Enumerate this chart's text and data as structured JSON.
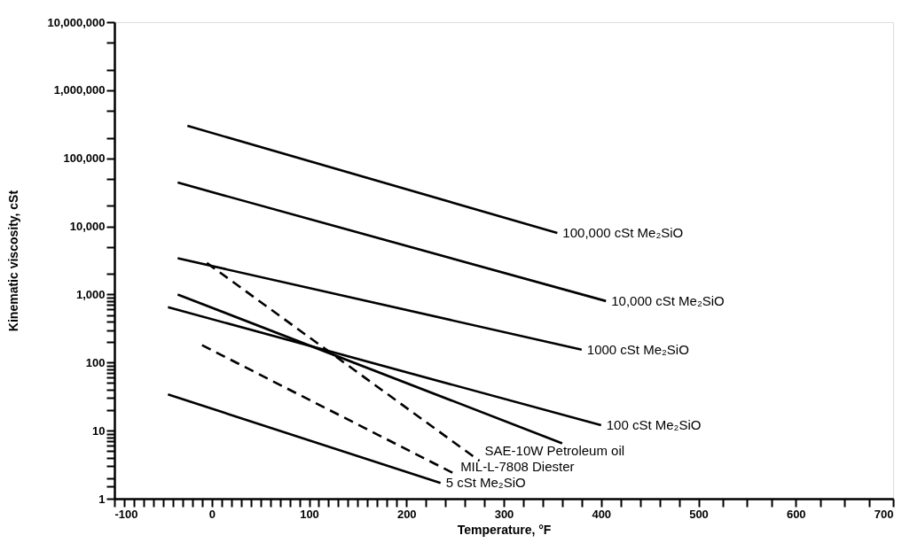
{
  "chart_data": {
    "type": "line",
    "log": "y",
    "xlabel": "Temperature, °F",
    "ylabel": "Kinematic viscosity, cSt",
    "xlim": [
      -100,
      700
    ],
    "ylim": [
      1,
      10000000
    ],
    "xticks": [
      -100,
      {
        "value": -90,
        "label": null
      },
      {
        "value": -80,
        "label": null
      },
      {
        "value": -70,
        "label": null
      },
      {
        "value": -60,
        "label": null
      },
      {
        "value": -50,
        "label": null
      },
      {
        "value": -40,
        "label": null
      },
      {
        "value": -30,
        "label": null
      },
      {
        "value": -20,
        "label": null
      },
      {
        "value": -10,
        "label": null
      },
      0,
      {
        "value": 10,
        "label": null
      },
      {
        "value": 20,
        "label": null
      },
      {
        "value": 30,
        "label": null
      },
      {
        "value": 40,
        "label": null
      },
      {
        "value": 50,
        "label": null
      },
      {
        "value": 60,
        "label": null
      },
      {
        "value": 70,
        "label": null
      },
      {
        "value": 80,
        "label": null
      },
      {
        "value": 90,
        "label": null
      },
      100,
      {
        "value": 110,
        "label": null
      },
      {
        "value": 120,
        "label": null
      },
      {
        "value": 130,
        "label": null
      },
      {
        "value": 140,
        "label": null
      },
      {
        "value": 150,
        "label": null
      },
      {
        "value": 160,
        "label": null
      },
      {
        "value": 170,
        "label": null
      },
      {
        "value": 180,
        "label": null
      },
      {
        "value": 190,
        "label": null
      },
      200,
      {
        "value": 220,
        "label": null
      },
      {
        "value": 240,
        "label": null
      },
      {
        "value": 260,
        "label": null
      },
      {
        "value": 280,
        "label": null
      },
      300,
      {
        "value": 320,
        "label": null
      },
      {
        "value": 340,
        "label": null
      },
      {
        "value": 360,
        "label": null
      },
      {
        "value": 380,
        "label": null
      },
      400,
      {
        "value": 420,
        "label": null
      },
      {
        "value": 440,
        "label": null
      },
      {
        "value": 460,
        "label": null
      },
      {
        "value": 480,
        "label": null
      },
      500,
      {
        "value": 525,
        "label": null
      },
      {
        "value": 550,
        "label": null
      },
      {
        "value": 575,
        "label": null
      },
      600,
      {
        "value": 625,
        "label": null
      },
      {
        "value": 650,
        "label": null
      },
      {
        "value": 675,
        "label": null
      },
      700
    ],
    "yticks": [
      1,
      {
        "value": 1.5,
        "label": null
      },
      {
        "value": 2,
        "label": null
      },
      {
        "value": 3,
        "label": null
      },
      {
        "value": 4,
        "label": null
      },
      {
        "value": 5,
        "label": null
      },
      {
        "value": 6,
        "label": null
      },
      {
        "value": 7,
        "label": null
      },
      {
        "value": 8,
        "label": null
      },
      {
        "value": 9,
        "label": null
      },
      10,
      {
        "value": 20,
        "label": null
      },
      {
        "value": 30,
        "label": null
      },
      {
        "value": 40,
        "label": null
      },
      {
        "value": 50,
        "label": null
      },
      {
        "value": 60,
        "label": null
      },
      {
        "value": 70,
        "label": null
      },
      {
        "value": 80,
        "label": null
      },
      {
        "value": 90,
        "label": null
      },
      100,
      {
        "value": 200,
        "label": null
      },
      {
        "value": 300,
        "label": null
      },
      {
        "value": 400,
        "label": null
      },
      {
        "value": 500,
        "label": null
      },
      {
        "value": 600,
        "label": null
      },
      {
        "value": 700,
        "label": null
      },
      {
        "value": 800,
        "label": null
      },
      {
        "value": 900,
        "label": null
      },
      {
        "value": 1000,
        "label": "1,000"
      },
      {
        "value": 2000,
        "label": null
      },
      {
        "value": 5000,
        "label": null
      },
      {
        "value": 10000,
        "label": "10,000"
      },
      {
        "value": 20000,
        "label": null
      },
      {
        "value": 50000,
        "label": null
      },
      {
        "value": 100000,
        "label": "100,000"
      },
      {
        "value": 200000,
        "label": null
      },
      {
        "value": 500000,
        "label": null
      },
      {
        "value": 1000000,
        "label": "1,000,000"
      },
      {
        "value": 2000000,
        "label": null
      },
      {
        "value": 5000000,
        "label": null
      },
      {
        "value": 10000000,
        "label": "10,000,000"
      }
    ],
    "series": [
      {
        "name": "100,000 cSt Me₂SiO",
        "color": "#000000",
        "line_style": "solid",
        "x": [
          -25,
          355
        ],
        "values": [
          300000,
          8000
        ]
      },
      {
        "name": "10,000 cSt Me₂SiO",
        "color": "#000000",
        "line_style": "solid",
        "x": [
          -35,
          405
        ],
        "values": [
          44000,
          800
        ]
      },
      {
        "name": "1000 cSt Me₂SiO",
        "color": "#000000",
        "line_style": "solid",
        "x": [
          -35,
          380
        ],
        "values": [
          3400,
          155
        ]
      },
      {
        "name": "100 cSt Me₂SiO",
        "color": "#000000",
        "line_style": "solid",
        "x": [
          -45,
          400
        ],
        "values": [
          650,
          12
        ]
      },
      {
        "color": "#000000",
        "line_style": "solid",
        "x": [
          -35,
          360
        ],
        "values": [
          1000,
          6.5
        ]
      },
      {
        "name": "SAE-10W Petroleum oil",
        "color": "#000000",
        "line_style": "dashed",
        "x": [
          -5,
          275
        ],
        "values": [
          2900,
          3.6
        ]
      },
      {
        "name": "MIL-L-7808 Diester",
        "color": "#000000",
        "line_style": "dashed",
        "x": [
          -10,
          250
        ],
        "values": [
          180,
          2.3
        ]
      },
      {
        "name": "5 cSt Me₂SiO",
        "color": "#000000",
        "line_style": "solid",
        "x": [
          -45,
          235
        ],
        "values": [
          34,
          1.7
        ]
      }
    ]
  }
}
